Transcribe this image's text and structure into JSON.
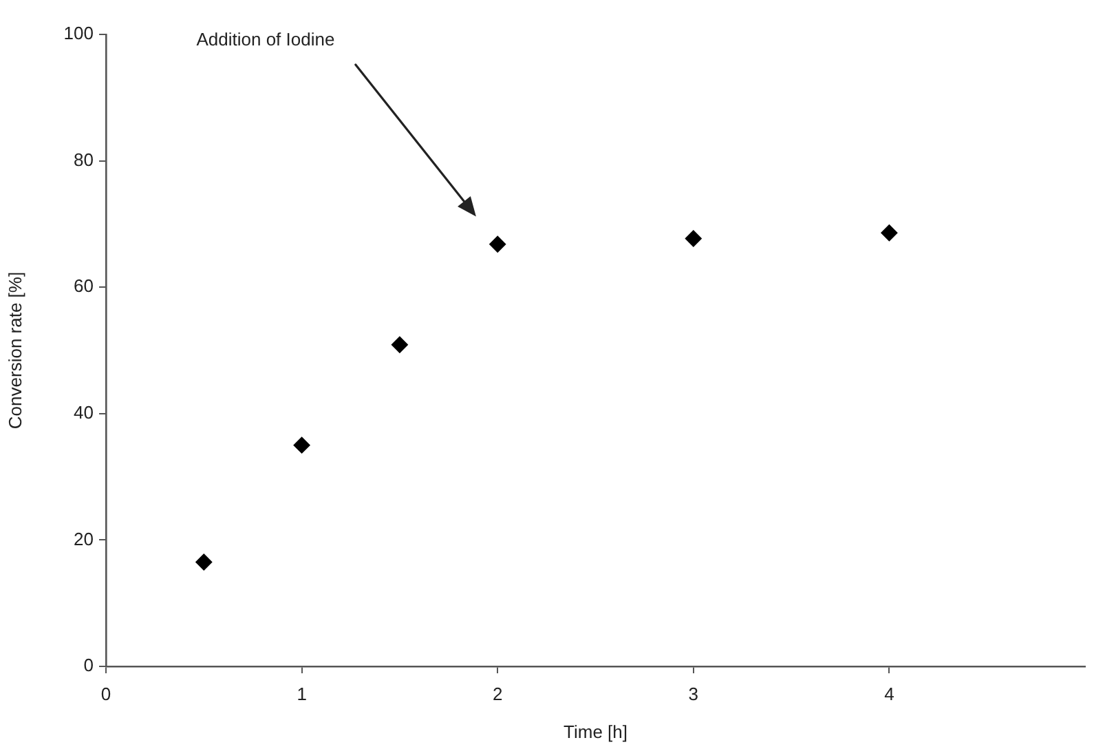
{
  "chart_data": {
    "type": "scatter",
    "xlabel": "Time [h]",
    "ylabel": "Conversion rate [%]",
    "x": [
      0.5,
      1,
      1.5,
      2,
      3,
      4
    ],
    "series": [
      {
        "color": "#000000",
        "values": [
          16.5,
          35.0,
          50.9,
          66.8,
          67.7,
          68.6
        ]
      }
    ],
    "xlim": [
      0,
      5
    ],
    "xticks": [
      0,
      1,
      2,
      3,
      4
    ],
    "ylim": [
      0,
      100
    ],
    "yticks": [
      0,
      20,
      40,
      60,
      80,
      100
    ],
    "grid": false,
    "legend": false,
    "marker": "diamond",
    "annotations": [
      "Addition of Iodine"
    ]
  }
}
